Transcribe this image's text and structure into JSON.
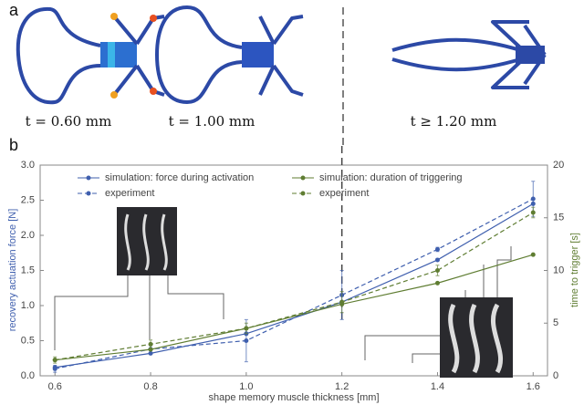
{
  "panel_a": {
    "label": "a",
    "captions": [
      "t = 0.60 mm",
      "t = 1.00 mm",
      "t ≥ 1.20 mm"
    ]
  },
  "chart_data": {
    "type": "line",
    "panel_label": "b",
    "x_label": "shape memory muscle thickness [mm]",
    "y_label": "recovery actuation force [N]",
    "y2_label": "time to trigger [s]",
    "x": [
      0.6,
      0.8,
      1.0,
      1.2,
      1.4,
      1.6
    ],
    "series": [
      {
        "name": "simulation: force during activation",
        "color": "#3f5fae",
        "dashed": false,
        "values": [
          0.12,
          0.32,
          0.6,
          1.05,
          1.65,
          2.45
        ]
      },
      {
        "name": "experiment",
        "color": "#3f5fae",
        "dashed": true,
        "values": [
          0.1,
          0.38,
          0.5,
          1.15,
          1.8,
          2.52
        ],
        "errors": [
          0.05,
          0.05,
          0.3,
          0.35,
          0.03,
          0.25
        ]
      },
      {
        "name": "simulation: duration of triggering",
        "color": "#5f7d32",
        "dashed": false,
        "axis": "y2",
        "values": [
          1.5,
          2.5,
          4.5,
          6.8,
          8.8,
          11.5
        ]
      },
      {
        "name": "experiment",
        "color": "#5f7d32",
        "dashed": true,
        "axis": "y2",
        "values": [
          1.5,
          3.0,
          4.5,
          7.0,
          10.0,
          15.5
        ],
        "errors": [
          0.3,
          0.4,
          0.5,
          1.0,
          0.5,
          0.5
        ]
      }
    ],
    "xlim": [
      0.569,
      1.63
    ],
    "xticks": [
      0.6,
      0.8,
      {
        "value": 1.0,
        "label": "1.0"
      },
      1.2,
      1.4,
      1.6
    ],
    "ylim": [
      0,
      3
    ],
    "yticks": [
      {
        "value": 0,
        "label": "0.0"
      },
      0.5,
      {
        "value": 1,
        "label": "1.0"
      },
      1.5,
      {
        "value": 2,
        "label": "2.0"
      },
      2.5,
      {
        "value": 3,
        "label": "3.0"
      }
    ],
    "y2lim": [
      0,
      20
    ],
    "y2ticks": [
      0,
      5,
      10,
      15,
      20
    ]
  }
}
